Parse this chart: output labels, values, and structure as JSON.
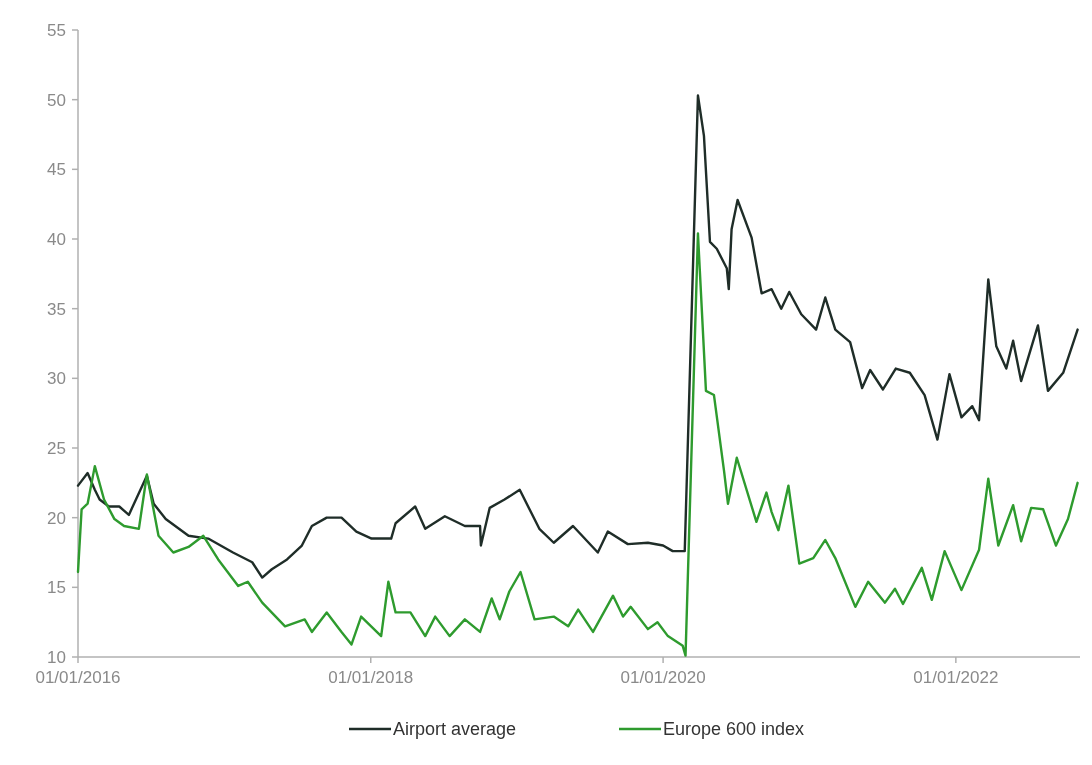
{
  "chart_data": {
    "type": "line",
    "xlim": [
      "2016-01-01",
      "2022-11-07"
    ],
    "xticks": [
      {
        "value": "2016-01-01",
        "label": "01/01/2016"
      },
      {
        "value": "2018-01-01",
        "label": "01/01/2018"
      },
      {
        "value": "2020-01-01",
        "label": "01/01/2020"
      },
      {
        "value": "2022-01-01",
        "label": "01/01/2022"
      }
    ],
    "ylim": [
      10,
      55
    ],
    "yticks": [
      10,
      15,
      20,
      25,
      30,
      35,
      40,
      45,
      50,
      55
    ],
    "grid": false,
    "legend": "bottom",
    "line_style": "solid",
    "marker": "none",
    "series": [
      {
        "name": "Airport average",
        "color": "#1f2d28",
        "x": [
          "2016-01-01",
          "2016-01-25",
          "2016-02-12",
          "2016-02-24",
          "2016-03-18",
          "2016-04-13",
          "2016-05-07",
          "2016-06-21",
          "2016-07-08",
          "2016-08-07",
          "2016-10-03",
          "2016-11-21",
          "2017-01-22",
          "2017-03-11",
          "2017-04-05",
          "2017-04-29",
          "2017-06-06",
          "2017-07-13",
          "2017-08-07",
          "2017-09-13",
          "2017-10-20",
          "2017-11-26",
          "2018-01-03",
          "2018-02-21",
          "2018-03-04",
          "2018-04-22",
          "2018-05-17",
          "2018-07-05",
          "2018-08-24",
          "2018-10-01",
          "2018-10-03",
          "2018-10-25",
          "2018-12-01",
          "2019-01-08",
          "2019-02-26",
          "2019-04-03",
          "2019-05-21",
          "2019-07-22",
          "2019-08-16",
          "2019-10-05",
          "2019-11-24",
          "2020-01-01",
          "2020-01-25",
          "2020-02-24",
          "2020-03-28",
          "2020-04-12",
          "2020-04-27",
          "2020-05-14",
          "2020-06-08",
          "2020-06-13",
          "2020-06-20",
          "2020-07-05",
          "2020-08-09",
          "2020-09-03",
          "2020-09-28",
          "2020-10-22",
          "2020-11-11",
          "2020-12-11",
          "2021-01-17",
          "2021-02-09",
          "2021-03-06",
          "2021-04-12",
          "2021-05-12",
          "2021-06-01",
          "2021-07-03",
          "2021-08-04",
          "2021-09-08",
          "2021-10-15",
          "2021-11-16",
          "2021-12-16",
          "2022-01-15",
          "2022-02-11",
          "2022-02-28",
          "2022-03-23",
          "2022-04-12",
          "2022-05-07",
          "2022-05-24",
          "2022-06-13",
          "2022-07-25",
          "2022-08-19",
          "2022-09-26",
          "2022-11-01"
        ],
        "values": [
          22.3,
          23.2,
          22.0,
          21.3,
          20.8,
          20.8,
          20.2,
          23.0,
          21.0,
          19.9,
          18.7,
          18.5,
          17.5,
          16.8,
          15.7,
          16.3,
          17.0,
          18.0,
          19.4,
          20.0,
          20.0,
          19.0,
          18.5,
          18.5,
          19.6,
          20.8,
          19.2,
          20.1,
          19.4,
          19.4,
          18.0,
          20.7,
          21.3,
          22.0,
          19.2,
          18.2,
          19.4,
          17.5,
          19.0,
          18.1,
          18.2,
          18.0,
          17.6,
          17.6,
          50.3,
          47.4,
          39.8,
          39.3,
          37.9,
          36.4,
          40.7,
          42.8,
          40.1,
          36.1,
          36.4,
          35.0,
          36.2,
          34.6,
          33.5,
          35.8,
          33.5,
          32.6,
          29.3,
          30.6,
          29.2,
          30.7,
          30.4,
          28.8,
          25.6,
          30.3,
          27.2,
          28.0,
          27.0,
          37.1,
          32.3,
          30.7,
          32.7,
          29.8,
          33.8,
          29.1,
          30.4,
          33.5
        ]
      },
      {
        "name": "Europe 600 index",
        "color": "#2e9b2e",
        "x": [
          "2016-01-01",
          "2016-01-10",
          "2016-01-25",
          "2016-02-12",
          "2016-03-06",
          "2016-04-01",
          "2016-04-25",
          "2016-06-01",
          "2016-06-21",
          "2016-07-20",
          "2016-08-26",
          "2016-10-03",
          "2016-11-09",
          "2016-12-16",
          "2017-02-04",
          "2017-02-28",
          "2017-04-05",
          "2017-06-01",
          "2017-07-20",
          "2017-08-07",
          "2017-09-13",
          "2017-10-20",
          "2017-11-14",
          "2017-12-08",
          "2018-01-27",
          "2018-02-14",
          "2018-03-04",
          "2018-04-10",
          "2018-05-17",
          "2018-06-11",
          "2018-07-17",
          "2018-08-24",
          "2018-10-01",
          "2018-10-30",
          "2018-11-19",
          "2018-12-13",
          "2019-01-10",
          "2019-02-14",
          "2019-04-03",
          "2019-05-09",
          "2019-06-03",
          "2019-07-10",
          "2019-08-29",
          "2019-09-23",
          "2019-10-12",
          "2019-11-24",
          "2019-12-18",
          "2020-01-13",
          "2020-02-19",
          "2020-02-26",
          "2020-03-28",
          "2020-04-17",
          "2020-05-07",
          "2020-06-01",
          "2020-06-11",
          "2020-07-03",
          "2020-08-21",
          "2020-09-15",
          "2020-09-28",
          "2020-10-15",
          "2020-11-09",
          "2020-12-06",
          "2021-01-10",
          "2021-02-09",
          "2021-03-06",
          "2021-04-25",
          "2021-05-27",
          "2021-07-08",
          "2021-08-02",
          "2021-08-22",
          "2021-10-08",
          "2021-11-02",
          "2021-12-04",
          "2022-01-15",
          "2022-02-28",
          "2022-03-23",
          "2022-04-17",
          "2022-05-24",
          "2022-06-13",
          "2022-07-08",
          "2022-08-07",
          "2022-09-08",
          "2022-10-08",
          "2022-11-01"
        ],
        "values": [
          16.1,
          20.6,
          21.0,
          23.7,
          21.3,
          19.9,
          19.4,
          19.2,
          23.1,
          18.7,
          17.5,
          17.9,
          18.7,
          17.0,
          15.1,
          15.4,
          13.9,
          12.2,
          12.7,
          11.8,
          13.2,
          11.8,
          10.9,
          12.9,
          11.5,
          15.4,
          13.2,
          13.2,
          11.5,
          12.9,
          11.5,
          12.7,
          11.8,
          14.2,
          12.7,
          14.7,
          16.1,
          12.7,
          12.9,
          12.2,
          13.4,
          11.8,
          14.4,
          12.9,
          13.6,
          12.0,
          12.5,
          11.5,
          10.8,
          10.1,
          40.4,
          29.1,
          28.8,
          23.4,
          21.0,
          24.3,
          19.7,
          21.8,
          20.4,
          19.1,
          22.3,
          16.7,
          17.1,
          18.4,
          17.1,
          13.6,
          15.4,
          13.9,
          14.9,
          13.8,
          16.4,
          14.1,
          17.6,
          14.8,
          17.7,
          22.8,
          18.0,
          20.9,
          18.3,
          20.7,
          20.6,
          18.0,
          19.9,
          22.5
        ]
      }
    ]
  }
}
